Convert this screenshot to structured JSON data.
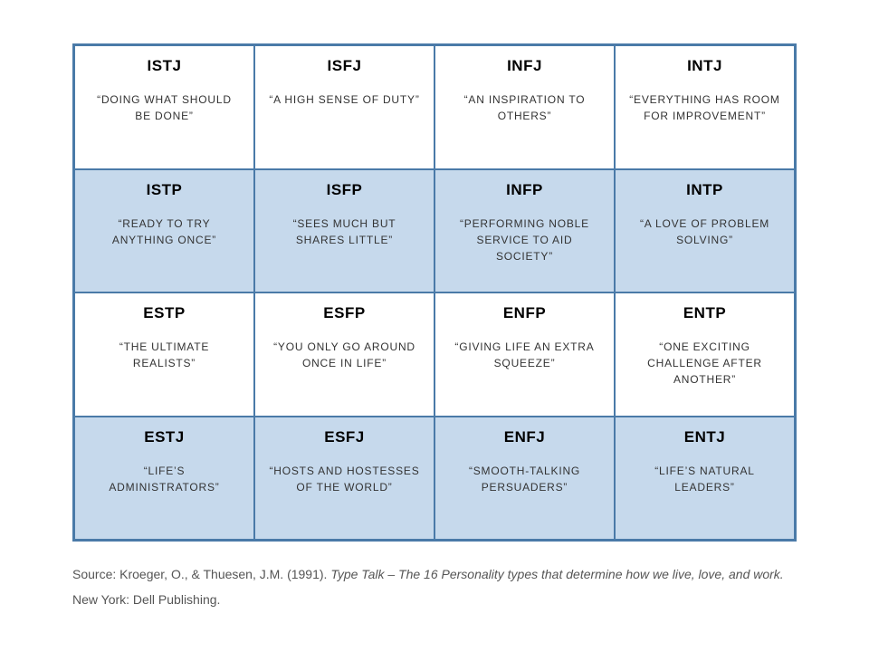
{
  "grid": {
    "columns": 4,
    "rows": 4,
    "border_color": "#4a7aa8",
    "row_backgrounds": [
      "#ffffff",
      "#c6d9ec",
      "#ffffff",
      "#c6d9ec"
    ],
    "cells": [
      {
        "code": "ISTJ",
        "tagline": "“DOING WHAT SHOULD BE DONE”"
      },
      {
        "code": "ISFJ",
        "tagline": "“A HIGH SENSE OF DUTY”"
      },
      {
        "code": "INFJ",
        "tagline": "“AN INSPIRATION TO OTHERS”"
      },
      {
        "code": "INTJ",
        "tagline": "“EVERYTHING HAS ROOM FOR IMPROVEMENT”"
      },
      {
        "code": "ISTP",
        "tagline": "“READY TO TRY ANYTHING ONCE”"
      },
      {
        "code": "ISFP",
        "tagline": "“SEES MUCH BUT SHARES LITTLE”"
      },
      {
        "code": "INFP",
        "tagline": "“PERFORMING NOBLE SERVICE TO AID SOCIETY”"
      },
      {
        "code": "INTP",
        "tagline": "“A LOVE OF PROBLEM SOLVING”"
      },
      {
        "code": "ESTP",
        "tagline": "“THE ULTIMATE REALISTS”"
      },
      {
        "code": "ESFP",
        "tagline": "“YOU ONLY GO AROUND ONCE IN LIFE”"
      },
      {
        "code": "ENFP",
        "tagline": "“GIVING LIFE AN EXTRA SQUEEZE”"
      },
      {
        "code": "ENTP",
        "tagline": "“ONE EXCITING CHALLENGE AFTER ANOTHER”"
      },
      {
        "code": "ESTJ",
        "tagline": "“LIFE’S ADMINISTRATORS”"
      },
      {
        "code": "ESFJ",
        "tagline": "“HOSTS AND HOSTESSES OF THE WORLD”"
      },
      {
        "code": "ENFJ",
        "tagline": "“SMOOTH-TALKING PERSUADERS”"
      },
      {
        "code": "ENTJ",
        "tagline": "“LIFE’S NATURAL LEADERS”"
      }
    ]
  },
  "source": {
    "prefix": "Source: Kroeger, O., & Thuesen, J.M. (1991). ",
    "title_italic": "Type Talk – The 16 Personality types that determine how we live, love, and work.",
    "suffix": " New York: Dell Publishing."
  },
  "styling": {
    "code_fontsize": 17,
    "code_fontweight": "bold",
    "tagline_fontsize": 12,
    "source_fontsize": 14,
    "source_color": "#555555",
    "background": "#ffffff"
  }
}
